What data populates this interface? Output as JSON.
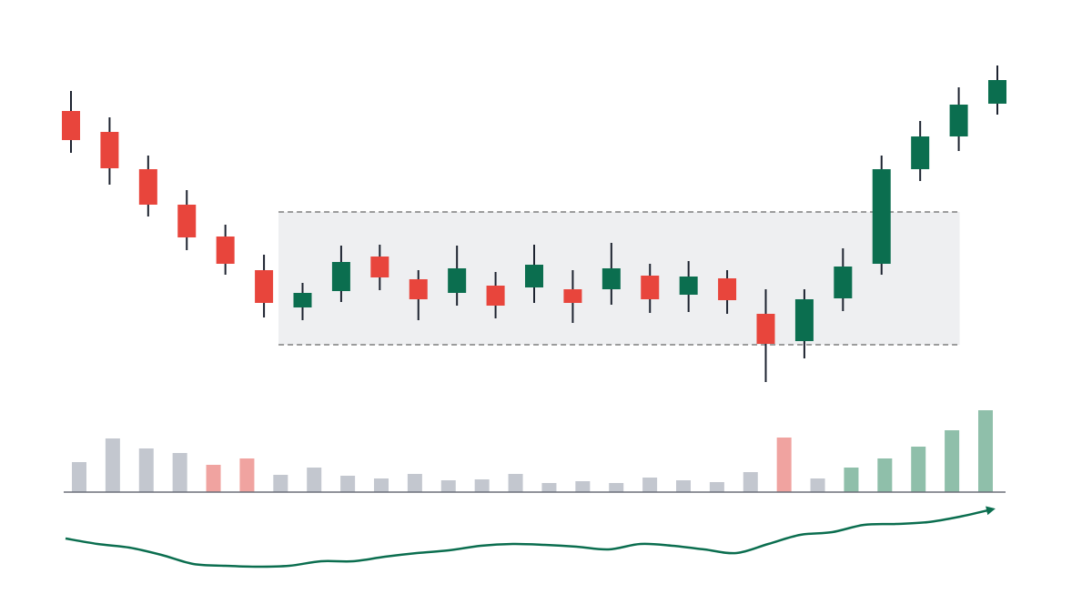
{
  "chart_data": [
    {
      "type": "candlestick",
      "up_color": "#0b6e4f",
      "down_color": "#e8453c",
      "ylim": [
        6,
        46
      ],
      "band": [
        12.1,
        26.7
      ],
      "open": [
        37.8,
        35.5,
        31.4,
        27.5,
        24.0,
        20.3,
        16.2,
        18.0,
        21.8,
        19.3,
        17.8,
        18.6,
        18.4,
        18.2,
        18.2,
        19.7,
        17.6,
        19.4,
        15.5,
        12.5,
        17.2,
        21.0,
        31.4,
        35.0,
        38.6
      ],
      "high": [
        40.0,
        37.1,
        32.9,
        29.1,
        25.3,
        22.0,
        18.9,
        23.0,
        23.1,
        20.3,
        23.0,
        20.1,
        23.1,
        20.3,
        23.3,
        21.0,
        21.3,
        20.3,
        18.2,
        18.2,
        22.7,
        32.9,
        36.7,
        40.4,
        42.8
      ],
      "low": [
        33.2,
        29.7,
        26.2,
        22.5,
        19.8,
        15.1,
        14.8,
        16.8,
        18.1,
        14.8,
        16.4,
        15.0,
        16.7,
        14.5,
        16.5,
        15.6,
        15.7,
        15.5,
        8.0,
        10.6,
        15.8,
        19.8,
        30.1,
        33.4,
        37.4
      ],
      "close": [
        34.6,
        31.5,
        27.5,
        23.9,
        21.0,
        16.7,
        17.8,
        21.2,
        19.5,
        17.1,
        20.5,
        16.4,
        20.9,
        16.7,
        20.5,
        17.1,
        19.6,
        17.0,
        12.2,
        17.1,
        20.7,
        31.4,
        35.0,
        38.5,
        41.2
      ]
    },
    {
      "type": "bar",
      "ylim": [
        0,
        100
      ],
      "values": [
        33,
        59,
        48,
        43,
        30,
        37,
        19,
        27,
        18,
        15,
        20,
        13,
        14,
        20,
        10,
        12,
        10,
        16,
        13,
        11,
        22,
        60,
        15,
        27,
        37,
        50,
        68,
        90
      ],
      "colors": [
        "#c3c7cf",
        "#c3c7cf",
        "#c3c7cf",
        "#c3c7cf",
        "#f0a3a0",
        "#f0a3a0",
        "#c3c7cf",
        "#c3c7cf",
        "#c3c7cf",
        "#c3c7cf",
        "#c3c7cf",
        "#c3c7cf",
        "#c3c7cf",
        "#c3c7cf",
        "#c3c7cf",
        "#c3c7cf",
        "#c3c7cf",
        "#c3c7cf",
        "#c3c7cf",
        "#c3c7cf",
        "#c3c7cf",
        "#f0a3a0",
        "#c3c7cf",
        "#8fbfaa",
        "#8fbfaa",
        "#8fbfaa",
        "#8fbfaa",
        "#8fbfaa"
      ]
    },
    {
      "type": "line",
      "color": "#0b6e4f",
      "ylim": [
        0,
        14
      ],
      "values": [
        10.8,
        10.2,
        9.8,
        9.0,
        8.0,
        7.8,
        7.7,
        7.8,
        8.3,
        8.3,
        8.8,
        9.2,
        9.5,
        10.0,
        10.2,
        10.1,
        9.9,
        9.6,
        10.2,
        10.0,
        9.6,
        9.2,
        10.2,
        11.2,
        11.5,
        12.3,
        12.4,
        12.6,
        13.2,
        14.0
      ]
    }
  ]
}
